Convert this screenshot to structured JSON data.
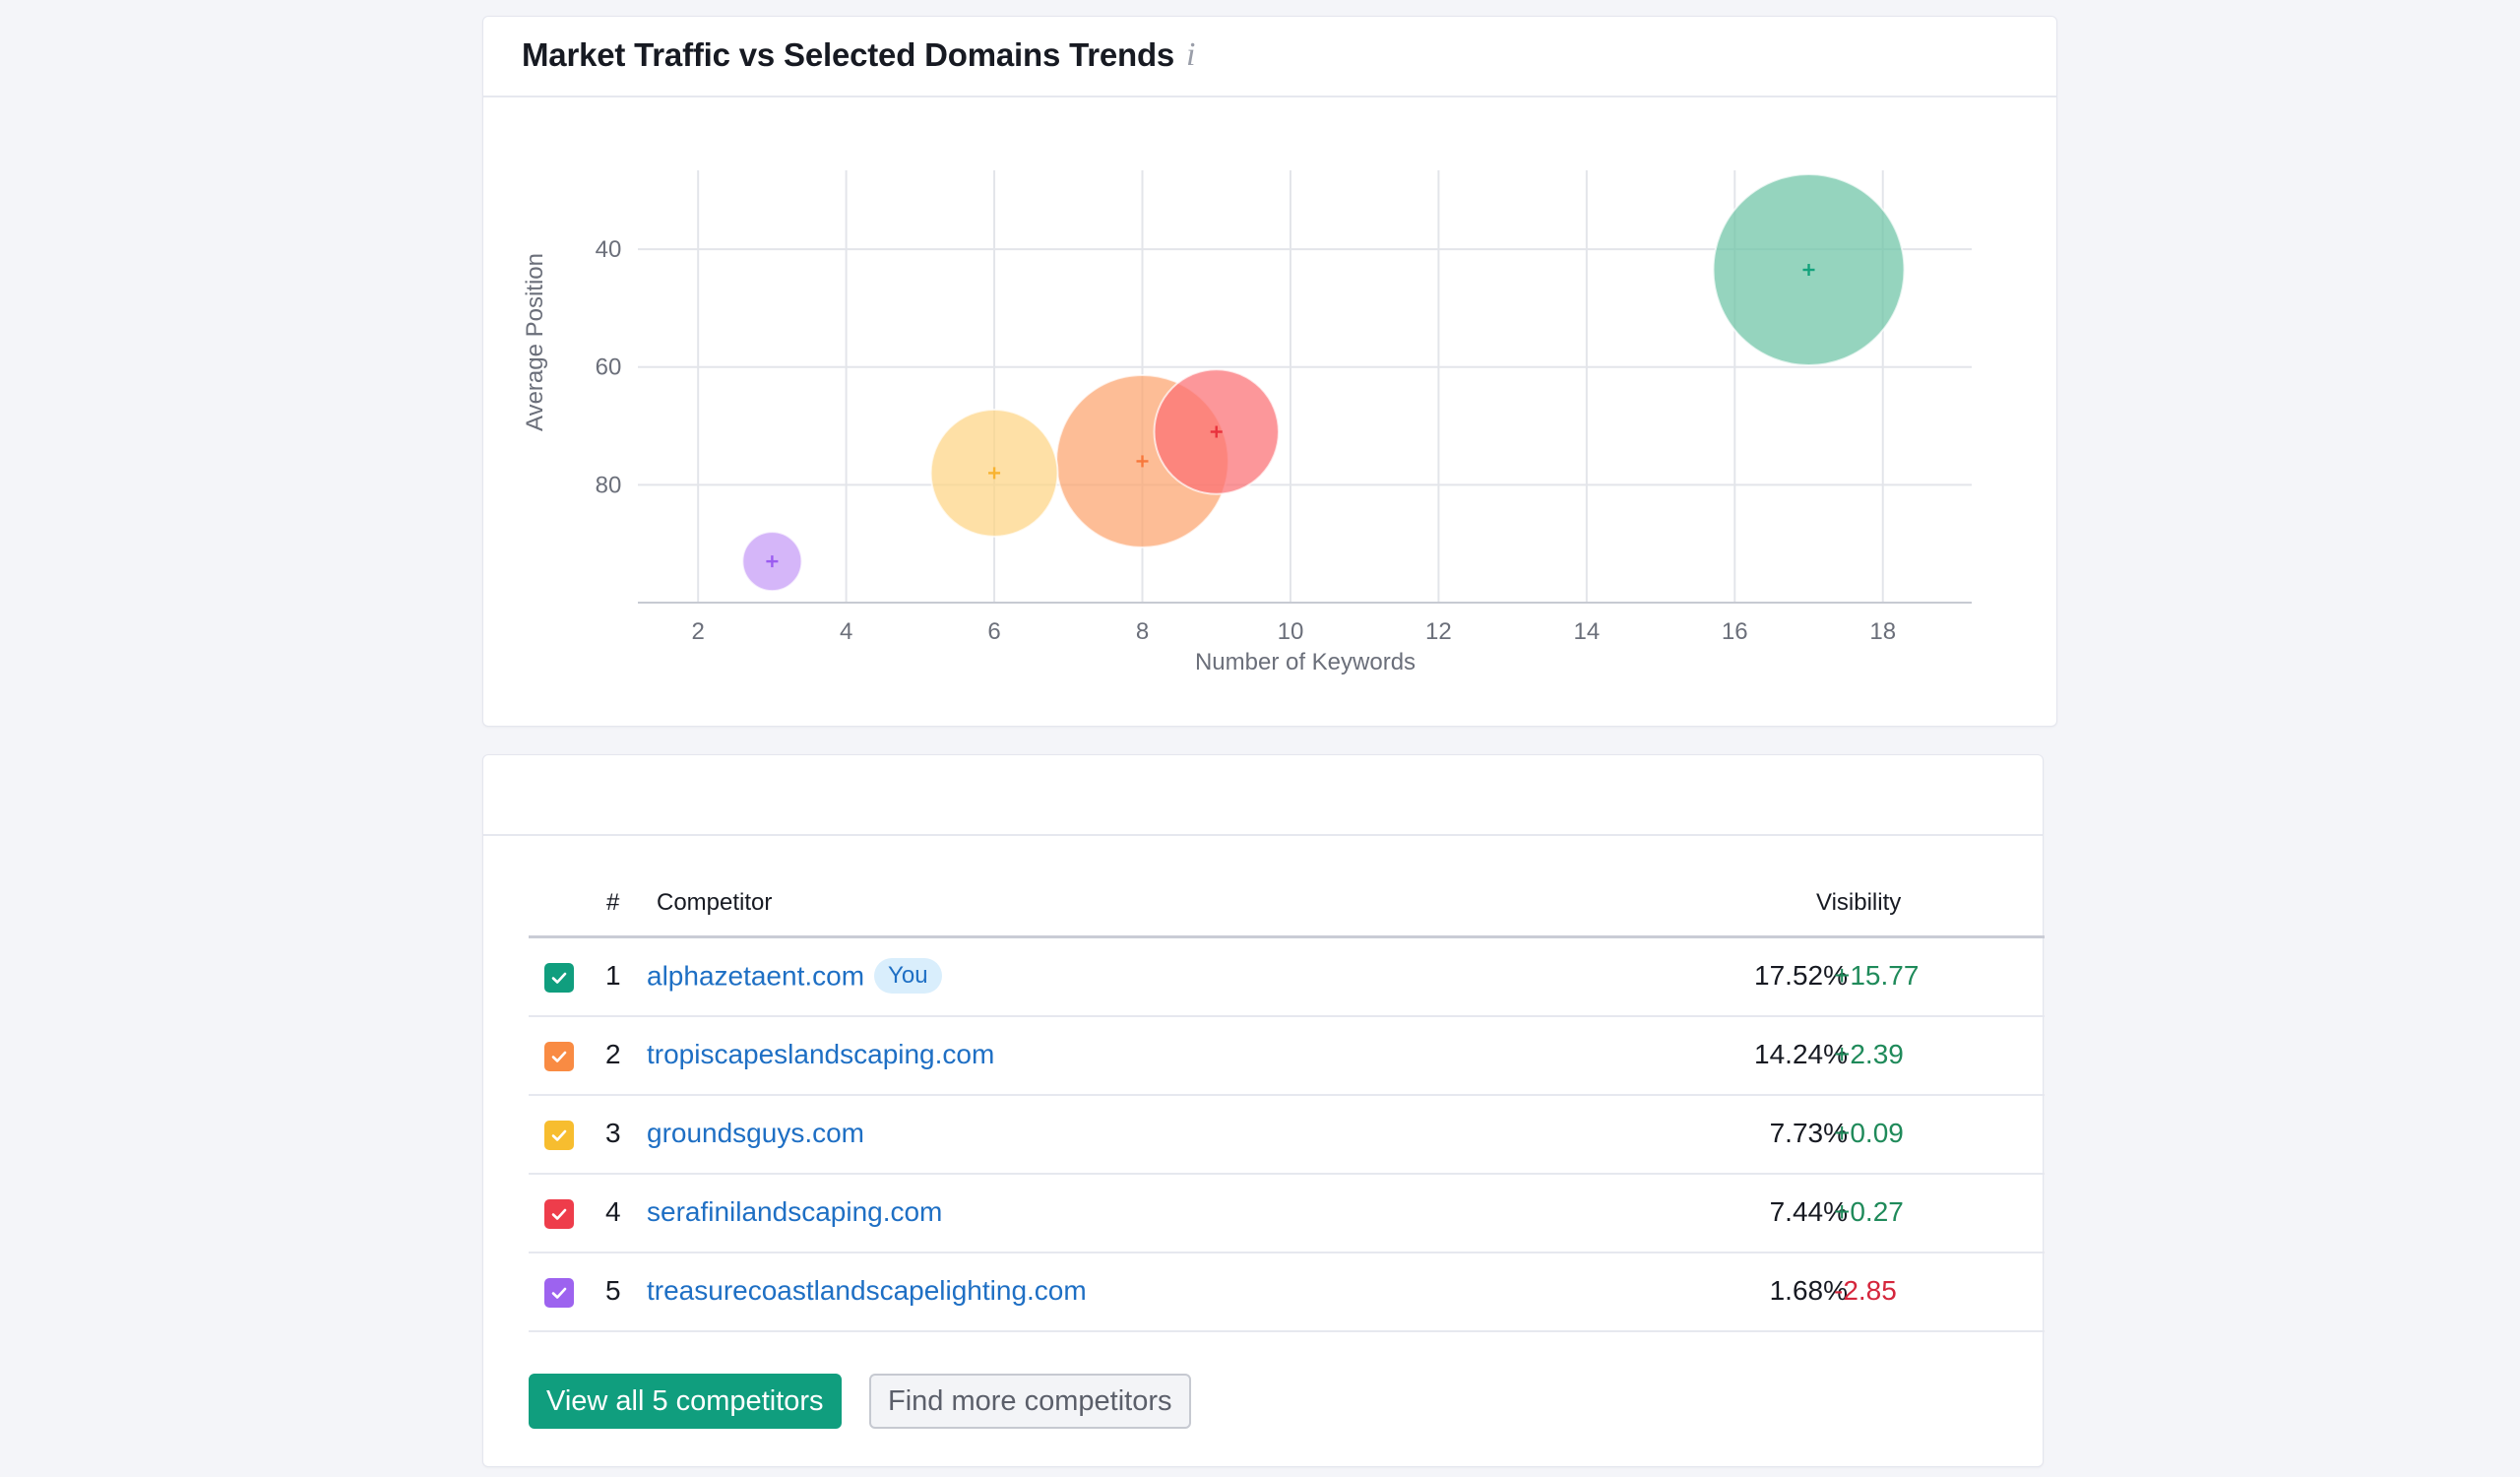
{
  "chart_card": {
    "title": "Market Traffic vs Selected Domains Trends",
    "info_icon": "info-icon",
    "info_glyph": "i"
  },
  "chart_data": {
    "type": "bubble",
    "title": "Market Traffic vs Selected Domains Trends",
    "xlabel": "Number of Keywords",
    "ylabel": "Average Position",
    "x_ticks": [
      2,
      4,
      6,
      8,
      10,
      12,
      14,
      16,
      18
    ],
    "y_ticks": [
      40,
      60,
      80
    ],
    "xlim": [
      1.2,
      19.2
    ],
    "ylim": [
      21.6,
      100
    ],
    "y_inverted": true,
    "grid": true,
    "series": [
      {
        "x": 17,
        "y": 43.5,
        "visibility": 17.52,
        "color": "#6cc4a5",
        "marker": "#14a27c"
      },
      {
        "x": 8,
        "y": 76,
        "visibility": 14.24,
        "color": "#fca36d",
        "marker": "#f7783c"
      },
      {
        "x": 9,
        "y": 71,
        "visibility": 7.44,
        "color": "#fb6f73",
        "marker": "#e8323d"
      },
      {
        "x": 6,
        "y": 78,
        "visibility": 7.73,
        "color": "#fdd484",
        "marker": "#f8b330"
      },
      {
        "x": 3,
        "y": 93,
        "visibility": 1.68,
        "color": "#c59af7",
        "marker": "#9b5cf0"
      }
    ]
  },
  "table": {
    "headers": {
      "rank": "#",
      "competitor": "Competitor",
      "visibility": "Visibility"
    },
    "you_label": "You",
    "rows": [
      {
        "rank": "1",
        "domain": "alphazetaent.com",
        "visibility": "17.52%",
        "delta": "+15.77",
        "delta_sign": "pos",
        "color": "#109e7e",
        "you": true
      },
      {
        "rank": "2",
        "domain": "tropiscapeslandscaping.com",
        "visibility": "14.24%",
        "delta": "+2.39",
        "delta_sign": "pos",
        "color": "#f98b43",
        "you": false
      },
      {
        "rank": "3",
        "domain": "groundsguys.com",
        "visibility": "7.73%",
        "delta": "+0.09",
        "delta_sign": "pos",
        "color": "#f7bd2f",
        "you": false
      },
      {
        "rank": "4",
        "domain": "serafinilandscaping.com",
        "visibility": "7.44%",
        "delta": "+0.27",
        "delta_sign": "pos",
        "color": "#ee3d4b",
        "you": false
      },
      {
        "rank": "5",
        "domain": "treasurecoastlandscapelighting.com",
        "visibility": "1.68%",
        "delta": "-2.85",
        "delta_sign": "neg",
        "color": "#9d63ef",
        "you": false
      }
    ]
  },
  "buttons": {
    "view_all": "View all 5 competitors",
    "find_more": "Find more competitors"
  }
}
